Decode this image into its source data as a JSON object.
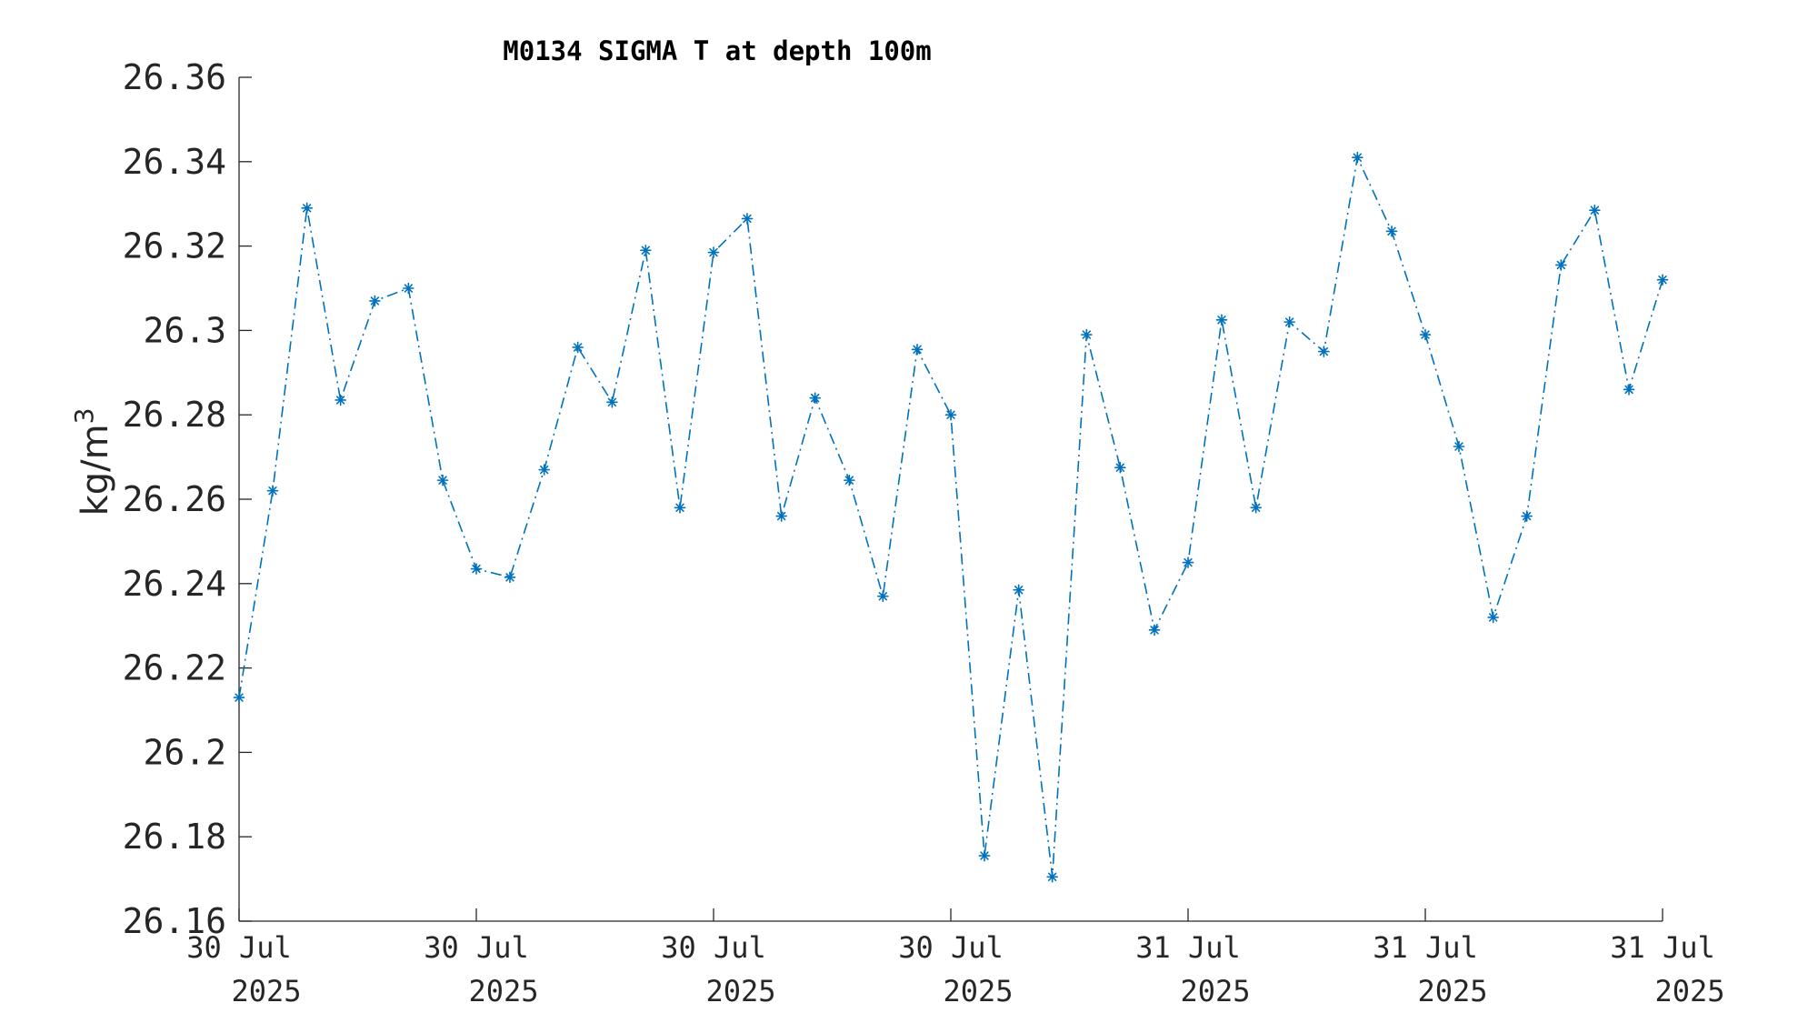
{
  "chart_data": {
    "type": "line",
    "title": "M0134 SIGMA T at depth 100m",
    "xlabel": "",
    "ylabel": "kg/m",
    "ylabel_superscript": "3",
    "ylim": [
      26.16,
      26.36
    ],
    "yticks": [
      26.16,
      26.18,
      26.2,
      26.22,
      26.24,
      26.26,
      26.28,
      26.3,
      26.32,
      26.34,
      26.36
    ],
    "ytick_labels": [
      "26.16",
      "26.18",
      "26.2",
      "26.22",
      "26.24",
      "26.26",
      "26.28",
      "26.3",
      "26.32",
      "26.34",
      "26.36"
    ],
    "xlim": [
      "2025-07-30T06:00",
      "2025-07-31T18:00"
    ],
    "xticks": [
      {
        "x": "2025-07-30T06:00",
        "line1": "30 Jul",
        "line2": "2025"
      },
      {
        "x": "2025-07-30T12:00",
        "line1": "30 Jul",
        "line2": "2025"
      },
      {
        "x": "2025-07-30T18:00",
        "line1": "30 Jul",
        "line2": "2025"
      },
      {
        "x": "2025-07-31T00:00",
        "line1": "30 Jul",
        "line2": "2025"
      },
      {
        "x": "2025-07-31T06:00",
        "line1": "31 Jul",
        "line2": "2025"
      },
      {
        "x": "2025-07-31T12:00",
        "line1": "31 Jul",
        "line2": "2025"
      },
      {
        "x": "2025-07-31T18:00",
        "line1": "31 Jul",
        "line2": "2025"
      }
    ],
    "grid": false,
    "series": [
      {
        "color": "#0072BD",
        "line_style": "dash-dot",
        "marker": "asterisk",
        "x": [
          "2025-07-30T06:00",
          "2025-07-30T06:51",
          "2025-07-30T07:43",
          "2025-07-30T08:34",
          "2025-07-30T09:26",
          "2025-07-30T10:17",
          "2025-07-30T11:09",
          "2025-07-30T12:00",
          "2025-07-30T12:51",
          "2025-07-30T13:43",
          "2025-07-30T14:34",
          "2025-07-30T15:26",
          "2025-07-30T16:17",
          "2025-07-30T17:09",
          "2025-07-30T18:00",
          "2025-07-30T18:51",
          "2025-07-30T19:43",
          "2025-07-30T20:34",
          "2025-07-30T21:26",
          "2025-07-30T22:17",
          "2025-07-30T23:09",
          "2025-07-31T00:00",
          "2025-07-31T00:51",
          "2025-07-31T01:43",
          "2025-07-31T02:34",
          "2025-07-31T03:26",
          "2025-07-31T04:17",
          "2025-07-31T05:09",
          "2025-07-31T06:00",
          "2025-07-31T06:51",
          "2025-07-31T07:43",
          "2025-07-31T08:34",
          "2025-07-31T09:26",
          "2025-07-31T10:17",
          "2025-07-31T11:09",
          "2025-07-31T12:00",
          "2025-07-31T12:51",
          "2025-07-31T13:43",
          "2025-07-31T14:34",
          "2025-07-31T15:26",
          "2025-07-31T16:17",
          "2025-07-31T17:09",
          "2025-07-31T18:00"
        ],
        "y": [
          26.213,
          26.262,
          26.329,
          26.2835,
          26.307,
          26.31,
          26.2645,
          26.2435,
          26.2415,
          26.267,
          26.296,
          26.283,
          26.319,
          26.258,
          26.3185,
          26.3265,
          26.256,
          26.284,
          26.2645,
          26.237,
          26.2955,
          26.28,
          26.1755,
          26.2385,
          26.1705,
          26.299,
          26.2675,
          26.229,
          26.245,
          26.3025,
          26.258,
          26.302,
          26.295,
          26.341,
          26.3235,
          26.299,
          26.2725,
          26.232,
          26.256,
          26.3155,
          26.3285,
          26.286,
          26.312
        ]
      }
    ]
  }
}
